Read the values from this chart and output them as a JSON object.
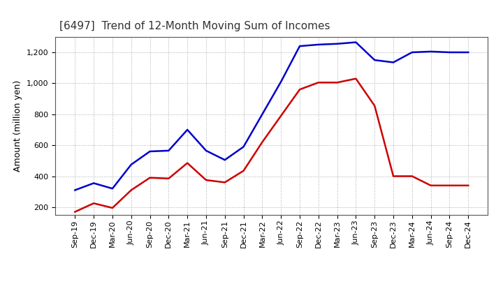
{
  "title": "[6497]  Trend of 12-Month Moving Sum of Incomes",
  "ylabel": "Amount (million yen)",
  "x_labels": [
    "Sep-19",
    "Dec-19",
    "Mar-20",
    "Jun-20",
    "Sep-20",
    "Dec-20",
    "Mar-21",
    "Jun-21",
    "Sep-21",
    "Dec-21",
    "Mar-22",
    "Jun-22",
    "Sep-22",
    "Dec-22",
    "Mar-23",
    "Jun-23",
    "Sep-23",
    "Dec-23",
    "Mar-24",
    "Jun-24",
    "Sep-24",
    "Dec-24"
  ],
  "ordinary_income": [
    310,
    355,
    320,
    475,
    560,
    565,
    700,
    565,
    505,
    590,
    800,
    1010,
    1240,
    1250,
    1255,
    1265,
    1150,
    1135,
    1200,
    1205,
    1200,
    1200
  ],
  "net_income": [
    170,
    225,
    195,
    310,
    390,
    385,
    485,
    375,
    360,
    435,
    620,
    790,
    960,
    1005,
    1005,
    1030,
    855,
    400,
    400,
    340,
    340,
    340
  ],
  "ordinary_color": "#0000cc",
  "net_color": "#cc0000",
  "background_color": "#ffffff",
  "grid_color": "#aaaaaa",
  "ylim": [
    150,
    1300
  ],
  "yticks": [
    200,
    400,
    600,
    800,
    1000,
    1200
  ],
  "title_fontsize": 11,
  "axis_fontsize": 9,
  "tick_fontsize": 8,
  "legend_fontsize": 9,
  "line_width": 1.8
}
